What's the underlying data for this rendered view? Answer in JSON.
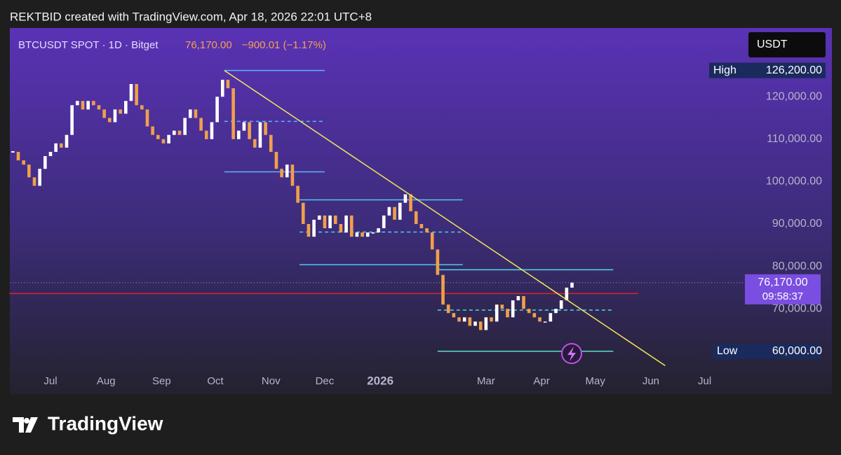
{
  "header": "REKTBID created with TradingView.com, Apr 18, 2026 22:01 UTC+8",
  "logo": "TradingView",
  "chart_data": {
    "type": "candlestick",
    "title": "BTCUSDT SPOT · 1D · Bitget",
    "last_price": {
      "value": 76170,
      "label": "76,170.00"
    },
    "change": "−900.01 (−1.17%)",
    "currency": "USDT",
    "countdown": "09:58:37",
    "high": {
      "name": "High",
      "value": 126200,
      "label": "126,200.00"
    },
    "low": {
      "name": "Low",
      "value": 60000,
      "label": "60,000.00"
    },
    "up_color": "#ffffff",
    "down_color": "#f0a04b",
    "series": [
      {
        "name": "BTCUSDT",
        "x": [
          -21,
          -18,
          -15,
          -12,
          -9,
          -6,
          -3,
          0,
          3,
          6,
          9,
          12,
          15,
          18,
          21,
          24,
          27,
          30,
          33,
          36,
          39,
          42,
          45,
          48,
          51,
          54,
          57,
          60,
          63,
          66,
          69,
          72,
          75,
          78,
          81,
          84,
          87,
          90,
          93,
          96,
          99,
          102,
          105,
          108,
          111,
          114,
          117,
          120,
          123,
          126,
          129,
          132,
          135,
          138,
          141,
          144,
          147,
          150,
          153,
          156,
          159,
          162,
          165,
          168,
          171,
          174,
          177,
          180,
          183,
          186,
          189,
          192,
          195,
          198,
          201,
          204,
          207,
          210,
          213,
          216,
          219,
          222,
          225,
          228,
          231,
          234,
          237,
          240,
          243,
          246,
          249,
          252,
          255,
          258,
          261,
          264,
          267,
          270,
          273,
          276,
          279,
          282,
          285,
          288,
          291
        ],
        "values": [
          107000,
          105000,
          104000,
          101000,
          99000,
          103000,
          106000,
          107000,
          109000,
          108000,
          111000,
          118000,
          119000,
          117000,
          119000,
          118000,
          117000,
          115000,
          114000,
          117000,
          116000,
          119000,
          123000,
          118000,
          117000,
          113000,
          111000,
          110000,
          109000,
          111000,
          112000,
          111000,
          115000,
          117000,
          115000,
          112000,
          110000,
          114000,
          120000,
          124000,
          122000,
          110000,
          112000,
          114000,
          110000,
          108000,
          114000,
          111000,
          107000,
          103000,
          101000,
          104000,
          99000,
          95000,
          90000,
          87000,
          91000,
          92000,
          89000,
          92000,
          90000,
          88000,
          92000,
          87000,
          88000,
          87000,
          88000,
          88000,
          89000,
          92000,
          94000,
          91000,
          95000,
          97000,
          93000,
          90000,
          89000,
          88000,
          84000,
          78000,
          71000,
          69000,
          68000,
          67000,
          68000,
          66000,
          67000,
          65000,
          68000,
          67000,
          71000,
          70000,
          68000,
          72000,
          73000,
          70000,
          69000,
          68000,
          67000,
          67000,
          69000,
          70000,
          72000,
          75000,
          76170
        ]
      }
    ],
    "xlim": [
      -22.7,
      381.6
    ],
    "xticks": [
      {
        "value": 0,
        "label": "Jul"
      },
      {
        "value": 31,
        "label": "Aug"
      },
      {
        "value": 62,
        "label": "Sep"
      },
      {
        "value": 92,
        "label": "Oct"
      },
      {
        "value": 123,
        "label": "Nov"
      },
      {
        "value": 153,
        "label": "Dec"
      },
      {
        "value": 184,
        "label": "2026"
      },
      {
        "value": 243,
        "label": "Mar"
      },
      {
        "value": 274,
        "label": "Apr"
      },
      {
        "value": 304,
        "label": "May"
      },
      {
        "value": 335,
        "label": "Jun"
      },
      {
        "value": 365,
        "label": "Jul"
      }
    ],
    "ylim": [
      49900,
      136200
    ],
    "yticks": [
      {
        "value": 70000,
        "label": "70,000.00"
      },
      {
        "value": 80000,
        "label": "80,000.00"
      },
      {
        "value": 90000,
        "label": "90,000.00"
      },
      {
        "value": 100000,
        "label": "100,000.00"
      },
      {
        "value": 110000,
        "label": "110,000.00"
      },
      {
        "value": 120000,
        "label": "120,000.00"
      }
    ],
    "trendline": {
      "x": [
        97,
        343
      ],
      "y": [
        126200,
        56600
      ],
      "color": "#f2e85a"
    },
    "support": {
      "x": [
        -23,
        328
      ],
      "y": 73600,
      "color": "#e0202a"
    },
    "levels": [
      {
        "y": 126200,
        "x": [
          97,
          153
        ],
        "dashed": false,
        "color": "#5ab4ff"
      },
      {
        "y": 114200,
        "x": [
          97,
          153
        ],
        "dashed": true,
        "color": "#5ab4ff"
      },
      {
        "y": 102300,
        "x": [
          97,
          153
        ],
        "dashed": false,
        "color": "#5ab4ff"
      },
      {
        "y": 95700,
        "x": [
          139,
          230
        ],
        "dashed": false,
        "color": "#4fc8f0"
      },
      {
        "y": 88100,
        "x": [
          139,
          230
        ],
        "dashed": true,
        "color": "#4fc8f0"
      },
      {
        "y": 80400,
        "x": [
          139,
          230
        ],
        "dashed": false,
        "color": "#4fc8f0"
      },
      {
        "y": 79200,
        "x": [
          216,
          314
        ],
        "dashed": false,
        "color": "#4fd8e8"
      },
      {
        "y": 69700,
        "x": [
          216,
          314
        ],
        "dashed": true,
        "color": "#4fd8e8"
      },
      {
        "y": 60000,
        "x": [
          216,
          314
        ],
        "dashed": false,
        "color": "#5de0c8"
      }
    ]
  }
}
